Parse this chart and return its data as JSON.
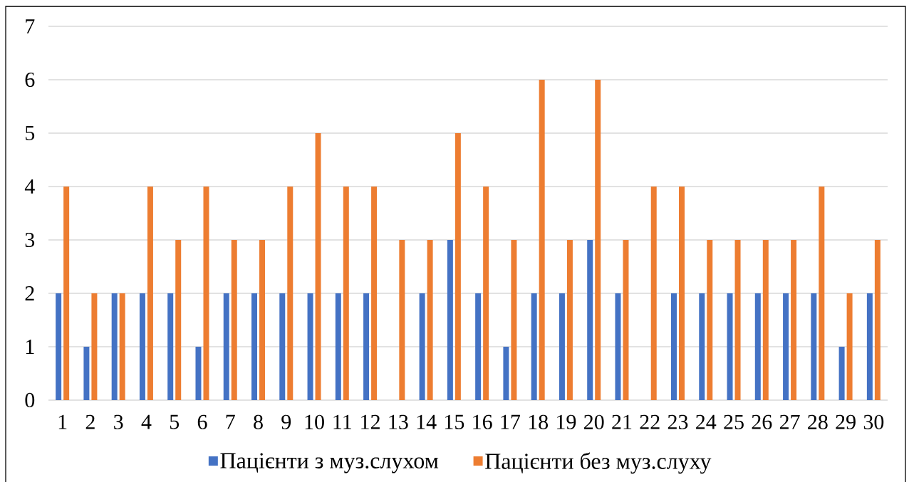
{
  "chart_data": {
    "type": "bar",
    "categories": [
      "1",
      "2",
      "3",
      "4",
      "5",
      "6",
      "7",
      "8",
      "9",
      "10",
      "11",
      "12",
      "13",
      "14",
      "15",
      "16",
      "17",
      "18",
      "19",
      "20",
      "21",
      "22",
      "23",
      "24",
      "25",
      "26",
      "27",
      "28",
      "29",
      "30"
    ],
    "series": [
      {
        "name": "Пацієнти з муз.слухом",
        "color": "#4472c4",
        "values": [
          2,
          1,
          2,
          2,
          2,
          1,
          2,
          2,
          2,
          2,
          2,
          2,
          0,
          2,
          3,
          2,
          1,
          2,
          2,
          3,
          2,
          0,
          2,
          2,
          2,
          2,
          2,
          2,
          1,
          2
        ]
      },
      {
        "name": "Пацієнти без муз.слуху",
        "color": "#ed7d31",
        "values": [
          4,
          2,
          2,
          4,
          3,
          4,
          3,
          3,
          4,
          5,
          4,
          4,
          3,
          3,
          5,
          4,
          3,
          6,
          3,
          6,
          3,
          4,
          4,
          3,
          3,
          3,
          3,
          4,
          2,
          3
        ]
      }
    ],
    "ylim": [
      0,
      7
    ],
    "yticks": [
      0,
      1,
      2,
      3,
      4,
      5,
      6,
      7
    ],
    "grid": "y",
    "legend": "bottom"
  }
}
